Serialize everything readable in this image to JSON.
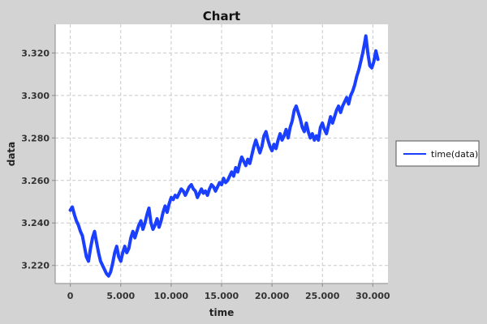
{
  "chart_data": {
    "type": "line",
    "title": "Chart",
    "xlabel": "time",
    "ylabel": "data",
    "xlim": [
      -1500,
      31500
    ],
    "ylim": [
      3.2115,
      3.3335
    ],
    "x_ticks": [
      "0",
      "5.000",
      "10.000",
      "15.000",
      "20.000",
      "25.000",
      "30.000"
    ],
    "x_tick_values": [
      0,
      5000,
      10000,
      15000,
      20000,
      25000,
      30000
    ],
    "y_ticks": [
      "3.220",
      "3.240",
      "3.260",
      "3.280",
      "3.300",
      "3.320"
    ],
    "y_tick_values": [
      3.22,
      3.24,
      3.26,
      3.28,
      3.3,
      3.32
    ],
    "grid": true,
    "legend_position": "right",
    "series": [
      {
        "name": "time(data)",
        "color": "#1a3fff",
        "points": [
          [
            0,
            3.246
          ],
          [
            200,
            3.2475
          ],
          [
            400,
            3.244
          ],
          [
            600,
            3.241
          ],
          [
            800,
            3.239
          ],
          [
            1000,
            3.236
          ],
          [
            1200,
            3.234
          ],
          [
            1400,
            3.229
          ],
          [
            1600,
            3.224
          ],
          [
            1800,
            3.222
          ],
          [
            2000,
            3.228
          ],
          [
            2200,
            3.233
          ],
          [
            2400,
            3.236
          ],
          [
            2600,
            3.231
          ],
          [
            2800,
            3.226
          ],
          [
            3000,
            3.222
          ],
          [
            3200,
            3.22
          ],
          [
            3400,
            3.218
          ],
          [
            3600,
            3.216
          ],
          [
            3800,
            3.215
          ],
          [
            4000,
            3.217
          ],
          [
            4200,
            3.221
          ],
          [
            4400,
            3.226
          ],
          [
            4600,
            3.229
          ],
          [
            4800,
            3.224
          ],
          [
            5000,
            3.222
          ],
          [
            5200,
            3.226
          ],
          [
            5400,
            3.229
          ],
          [
            5600,
            3.226
          ],
          [
            5800,
            3.228
          ],
          [
            6000,
            3.233
          ],
          [
            6200,
            3.236
          ],
          [
            6400,
            3.233
          ],
          [
            6600,
            3.236
          ],
          [
            6800,
            3.239
          ],
          [
            7000,
            3.241
          ],
          [
            7200,
            3.237
          ],
          [
            7400,
            3.24
          ],
          [
            7600,
            3.244
          ],
          [
            7800,
            3.247
          ],
          [
            8000,
            3.24
          ],
          [
            8200,
            3.237
          ],
          [
            8400,
            3.239
          ],
          [
            8600,
            3.242
          ],
          [
            8800,
            3.238
          ],
          [
            9000,
            3.241
          ],
          [
            9200,
            3.245
          ],
          [
            9400,
            3.248
          ],
          [
            9600,
            3.245
          ],
          [
            9800,
            3.249
          ],
          [
            10000,
            3.252
          ],
          [
            10200,
            3.251
          ],
          [
            10400,
            3.253
          ],
          [
            10600,
            3.252
          ],
          [
            10800,
            3.254
          ],
          [
            11000,
            3.256
          ],
          [
            11200,
            3.255
          ],
          [
            11400,
            3.253
          ],
          [
            11600,
            3.255
          ],
          [
            11800,
            3.257
          ],
          [
            12000,
            3.258
          ],
          [
            12200,
            3.256
          ],
          [
            12400,
            3.255
          ],
          [
            12600,
            3.252
          ],
          [
            12800,
            3.254
          ],
          [
            13000,
            3.256
          ],
          [
            13200,
            3.254
          ],
          [
            13400,
            3.255
          ],
          [
            13600,
            3.253
          ],
          [
            13800,
            3.256
          ],
          [
            14000,
            3.258
          ],
          [
            14200,
            3.257
          ],
          [
            14400,
            3.255
          ],
          [
            14600,
            3.257
          ],
          [
            14800,
            3.259
          ],
          [
            15000,
            3.258
          ],
          [
            15200,
            3.261
          ],
          [
            15400,
            3.259
          ],
          [
            15600,
            3.26
          ],
          [
            15800,
            3.262
          ],
          [
            16000,
            3.264
          ],
          [
            16200,
            3.262
          ],
          [
            16400,
            3.266
          ],
          [
            16600,
            3.264
          ],
          [
            16800,
            3.268
          ],
          [
            17000,
            3.271
          ],
          [
            17200,
            3.269
          ],
          [
            17400,
            3.267
          ],
          [
            17600,
            3.27
          ],
          [
            17800,
            3.268
          ],
          [
            18000,
            3.272
          ],
          [
            18200,
            3.276
          ],
          [
            18400,
            3.279
          ],
          [
            18600,
            3.276
          ],
          [
            18800,
            3.273
          ],
          [
            19000,
            3.276
          ],
          [
            19200,
            3.281
          ],
          [
            19400,
            3.283
          ],
          [
            19600,
            3.279
          ],
          [
            19800,
            3.276
          ],
          [
            20000,
            3.274
          ],
          [
            20200,
            3.277
          ],
          [
            20400,
            3.275
          ],
          [
            20600,
            3.279
          ],
          [
            20800,
            3.282
          ],
          [
            21000,
            3.279
          ],
          [
            21200,
            3.281
          ],
          [
            21400,
            3.284
          ],
          [
            21600,
            3.28
          ],
          [
            21800,
            3.285
          ],
          [
            22000,
            3.288
          ],
          [
            22200,
            3.293
          ],
          [
            22400,
            3.295
          ],
          [
            22600,
            3.292
          ],
          [
            22800,
            3.289
          ],
          [
            23000,
            3.285
          ],
          [
            23200,
            3.283
          ],
          [
            23400,
            3.287
          ],
          [
            23600,
            3.283
          ],
          [
            23800,
            3.28
          ],
          [
            24000,
            3.282
          ],
          [
            24200,
            3.279
          ],
          [
            24400,
            3.281
          ],
          [
            24600,
            3.279
          ],
          [
            24800,
            3.285
          ],
          [
            25000,
            3.287
          ],
          [
            25200,
            3.284
          ],
          [
            25400,
            3.282
          ],
          [
            25600,
            3.286
          ],
          [
            25800,
            3.29
          ],
          [
            26000,
            3.287
          ],
          [
            26200,
            3.29
          ],
          [
            26400,
            3.293
          ],
          [
            26600,
            3.295
          ],
          [
            26800,
            3.292
          ],
          [
            27000,
            3.295
          ],
          [
            27200,
            3.297
          ],
          [
            27400,
            3.299
          ],
          [
            27600,
            3.296
          ],
          [
            27800,
            3.3
          ],
          [
            28000,
            3.302
          ],
          [
            28200,
            3.305
          ],
          [
            28400,
            3.309
          ],
          [
            28600,
            3.312
          ],
          [
            28800,
            3.316
          ],
          [
            29000,
            3.32
          ],
          [
            29200,
            3.325
          ],
          [
            29300,
            3.328
          ],
          [
            29500,
            3.32
          ],
          [
            29700,
            3.314
          ],
          [
            29900,
            3.313
          ],
          [
            30100,
            3.316
          ],
          [
            30300,
            3.321
          ],
          [
            30500,
            3.317
          ]
        ]
      }
    ]
  }
}
